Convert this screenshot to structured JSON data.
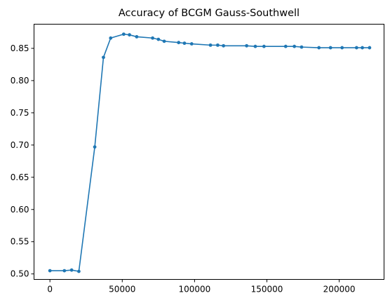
{
  "chart_data": {
    "type": "line",
    "title": "Accuracy of BCGM Gauss-Southwell",
    "xlabel": "",
    "ylabel": "",
    "xlim": [
      -11000,
      231000
    ],
    "ylim": [
      0.4915,
      0.8875
    ],
    "x_ticks": [
      0,
      50000,
      100000,
      150000,
      200000
    ],
    "x_tick_labels": [
      "0",
      "50000",
      "100000",
      "150000",
      "200000"
    ],
    "y_ticks": [
      0.5,
      0.55,
      0.6,
      0.65,
      0.7,
      0.75,
      0.8,
      0.85
    ],
    "y_tick_labels": [
      "0.50",
      "0.55",
      "0.60",
      "0.65",
      "0.70",
      "0.75",
      "0.80",
      "0.85"
    ],
    "grid": false,
    "legend": "none",
    "color": "#1f77b4",
    "marker": "circle",
    "series": [
      {
        "x": [
          0,
          10000,
          15000,
          20000,
          31000,
          37000,
          42000,
          51000,
          55000,
          60000,
          71000,
          75000,
          79000,
          89000,
          93000,
          98000,
          111000,
          116000,
          120000,
          136000,
          142000,
          148000,
          163000,
          169000,
          174000,
          186000,
          194000,
          202000,
          212000,
          216000,
          221000
        ],
        "y": [
          0.505,
          0.505,
          0.506,
          0.504,
          0.697,
          0.836,
          0.866,
          0.872,
          0.871,
          0.868,
          0.866,
          0.864,
          0.861,
          0.859,
          0.858,
          0.857,
          0.855,
          0.855,
          0.854,
          0.854,
          0.853,
          0.853,
          0.853,
          0.853,
          0.852,
          0.851,
          0.851,
          0.851,
          0.851,
          0.851,
          0.851
        ]
      }
    ]
  }
}
